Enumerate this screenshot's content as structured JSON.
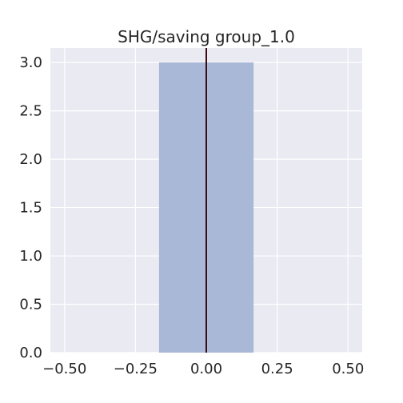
{
  "chart_data": {
    "type": "bar",
    "title": "SHG/saving group_1.0",
    "xlabel": "",
    "ylabel": "",
    "bars": [
      {
        "x_start": -0.1667,
        "x_end": 0.1667,
        "value": 3.0
      }
    ],
    "vline": {
      "x": 0.0,
      "color": "#3b0a14"
    },
    "xlim": [
      -0.55,
      0.55
    ],
    "ylim": [
      0.0,
      3.15
    ],
    "xticks": [
      -0.5,
      -0.25,
      0.0,
      0.25,
      0.5
    ],
    "xtick_labels": [
      "−0.50",
      "−0.25",
      "0.00",
      "0.25",
      "0.50"
    ],
    "yticks": [
      0.0,
      0.5,
      1.0,
      1.5,
      2.0,
      2.5,
      3.0
    ],
    "ytick_labels": [
      "0.0",
      "0.5",
      "1.0",
      "1.5",
      "2.0",
      "2.5",
      "3.0"
    ],
    "grid": true,
    "colors": {
      "bar": "#a9b8d6",
      "plot_background": "#eaeaf2",
      "grid": "#ffffff"
    }
  }
}
